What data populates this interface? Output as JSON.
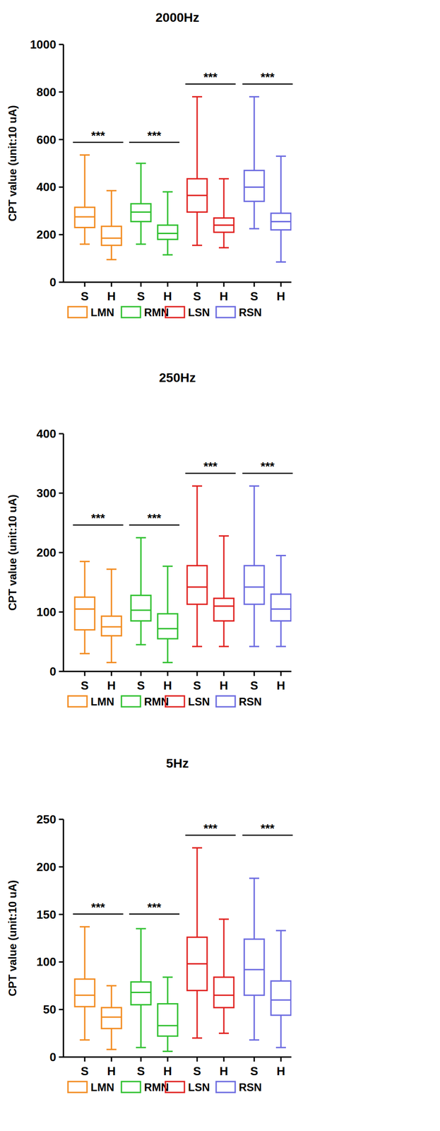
{
  "chart_data": [
    {
      "type": "box",
      "title": "2000Hz",
      "y_label": "CPT value (unit:10 uA)",
      "categories": [
        "S",
        "H"
      ],
      "ylim": [
        0,
        1000
      ],
      "yticks": [
        0,
        200,
        400,
        600,
        800,
        1000
      ],
      "series": [
        {
          "name": "LMN",
          "color": "#f28a1e",
          "significance": "***",
          "boxes": [
            {
              "min": 160,
              "q1": 230,
              "median": 275,
              "q3": 315,
              "max": 535
            },
            {
              "min": 95,
              "q1": 155,
              "median": 185,
              "q3": 235,
              "max": 385
            }
          ]
        },
        {
          "name": "RMN",
          "color": "#2fc02f",
          "significance": "***",
          "boxes": [
            {
              "min": 160,
              "q1": 255,
              "median": 295,
              "q3": 330,
              "max": 500
            },
            {
              "min": 115,
              "q1": 180,
              "median": 205,
              "q3": 240,
              "max": 380
            }
          ]
        },
        {
          "name": "LSN",
          "color": "#e0201e",
          "significance": "***",
          "boxes": [
            {
              "min": 155,
              "q1": 295,
              "median": 365,
              "q3": 435,
              "max": 780
            },
            {
              "min": 145,
              "q1": 210,
              "median": 240,
              "q3": 270,
              "max": 435
            }
          ]
        },
        {
          "name": "RSN",
          "color": "#6b6ae0",
          "significance": "***",
          "boxes": [
            {
              "min": 225,
              "q1": 340,
              "median": 400,
              "q3": 470,
              "max": 780
            },
            {
              "min": 85,
              "q1": 220,
              "median": 255,
              "q3": 290,
              "max": 530
            }
          ]
        }
      ]
    },
    {
      "type": "box",
      "title": "250Hz",
      "y_label": "CPT value (unit:10 uA)",
      "categories": [
        "S",
        "H"
      ],
      "ylim": [
        0,
        400
      ],
      "yticks": [
        0,
        100,
        200,
        300,
        400
      ],
      "series": [
        {
          "name": "LMN",
          "color": "#f28a1e",
          "significance": "***",
          "boxes": [
            {
              "min": 30,
              "q1": 70,
              "median": 105,
              "q3": 125,
              "max": 185
            },
            {
              "min": 15,
              "q1": 60,
              "median": 75,
              "q3": 93,
              "max": 172
            }
          ]
        },
        {
          "name": "RMN",
          "color": "#2fc02f",
          "significance": "***",
          "boxes": [
            {
              "min": 45,
              "q1": 85,
              "median": 103,
              "q3": 128,
              "max": 225
            },
            {
              "min": 15,
              "q1": 55,
              "median": 72,
              "q3": 97,
              "max": 177
            }
          ]
        },
        {
          "name": "LSN",
          "color": "#e0201e",
          "significance": "***",
          "boxes": [
            {
              "min": 42,
              "q1": 113,
              "median": 142,
              "q3": 178,
              "max": 312
            },
            {
              "min": 42,
              "q1": 85,
              "median": 110,
              "q3": 123,
              "max": 228
            }
          ]
        },
        {
          "name": "RSN",
          "color": "#6b6ae0",
          "significance": "***",
          "boxes": [
            {
              "min": 42,
              "q1": 113,
              "median": 142,
              "q3": 178,
              "max": 312
            },
            {
              "min": 42,
              "q1": 85,
              "median": 105,
              "q3": 130,
              "max": 195
            }
          ]
        }
      ]
    },
    {
      "type": "box",
      "title": "5Hz",
      "y_label": "CPT value (unit:10 uA)",
      "categories": [
        "S",
        "H"
      ],
      "ylim": [
        0,
        250
      ],
      "yticks": [
        0,
        50,
        100,
        150,
        200,
        250
      ],
      "series": [
        {
          "name": "LMN",
          "color": "#f28a1e",
          "significance": "***",
          "boxes": [
            {
              "min": 18,
              "q1": 53,
              "median": 65,
              "q3": 82,
              "max": 137
            },
            {
              "min": 8,
              "q1": 30,
              "median": 42,
              "q3": 52,
              "max": 75
            }
          ]
        },
        {
          "name": "RMN",
          "color": "#2fc02f",
          "significance": "***",
          "boxes": [
            {
              "min": 10,
              "q1": 55,
              "median": 68,
              "q3": 79,
              "max": 135
            },
            {
              "min": 6,
              "q1": 22,
              "median": 33,
              "q3": 56,
              "max": 84
            }
          ]
        },
        {
          "name": "LSN",
          "color": "#e0201e",
          "significance": "***",
          "boxes": [
            {
              "min": 20,
              "q1": 70,
              "median": 98,
              "q3": 126,
              "max": 220
            },
            {
              "min": 25,
              "q1": 52,
              "median": 65,
              "q3": 84,
              "max": 145
            }
          ]
        },
        {
          "name": "RSN",
          "color": "#6b6ae0",
          "significance": "***",
          "boxes": [
            {
              "min": 18,
              "q1": 65,
              "median": 92,
              "q3": 124,
              "max": 188
            },
            {
              "min": 10,
              "q1": 44,
              "median": 60,
              "q3": 80,
              "max": 133
            }
          ]
        }
      ]
    }
  ]
}
